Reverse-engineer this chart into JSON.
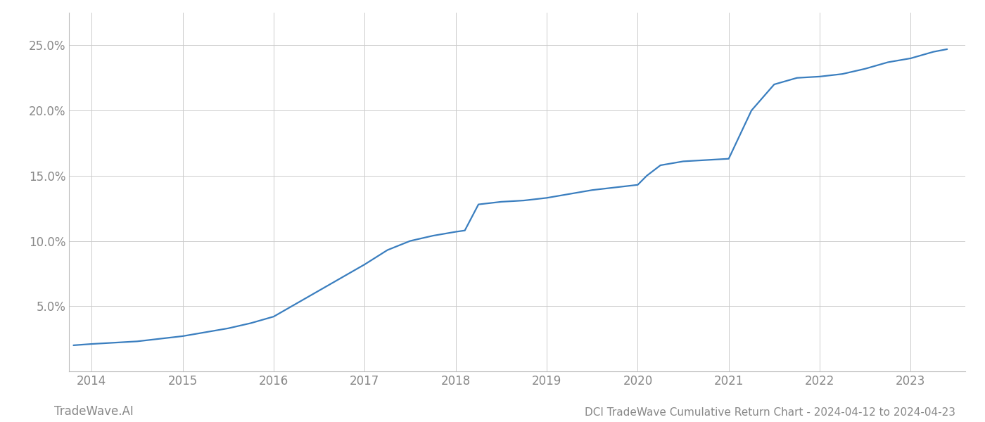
{
  "title": "DCI TradeWave Cumulative Return Chart - 2024-04-12 to 2024-04-23",
  "watermark": "TradeWave.AI",
  "line_color": "#3a7ebf",
  "background_color": "#ffffff",
  "grid_color": "#cccccc",
  "x_years": [
    2014,
    2015,
    2016,
    2017,
    2018,
    2019,
    2020,
    2021,
    2022,
    2023
  ],
  "x_data": [
    2013.8,
    2014.0,
    2014.25,
    2014.5,
    2014.75,
    2015.0,
    2015.25,
    2015.5,
    2015.75,
    2016.0,
    2016.25,
    2016.5,
    2016.75,
    2017.0,
    2017.25,
    2017.5,
    2017.75,
    2018.0,
    2018.1,
    2018.25,
    2018.5,
    2018.75,
    2019.0,
    2019.25,
    2019.5,
    2019.75,
    2020.0,
    2020.1,
    2020.25,
    2020.5,
    2020.75,
    2021.0,
    2021.25,
    2021.5,
    2021.75,
    2022.0,
    2022.25,
    2022.5,
    2022.75,
    2023.0,
    2023.25,
    2023.4
  ],
  "y_data": [
    0.02,
    0.021,
    0.022,
    0.023,
    0.025,
    0.027,
    0.03,
    0.033,
    0.037,
    0.042,
    0.052,
    0.062,
    0.072,
    0.082,
    0.093,
    0.1,
    0.104,
    0.107,
    0.108,
    0.128,
    0.13,
    0.131,
    0.133,
    0.136,
    0.139,
    0.141,
    0.143,
    0.15,
    0.158,
    0.161,
    0.162,
    0.163,
    0.2,
    0.22,
    0.225,
    0.226,
    0.228,
    0.232,
    0.237,
    0.24,
    0.245,
    0.247
  ],
  "ylim": [
    0.0,
    0.275
  ],
  "xlim": [
    2013.75,
    2023.6
  ],
  "yticks": [
    0.05,
    0.1,
    0.15,
    0.2,
    0.25
  ],
  "ytick_labels": [
    "5.0%",
    "10.0%",
    "15.0%",
    "20.0%",
    "25.0%"
  ],
  "title_fontsize": 11,
  "tick_fontsize": 12,
  "watermark_fontsize": 12,
  "line_width": 1.6
}
